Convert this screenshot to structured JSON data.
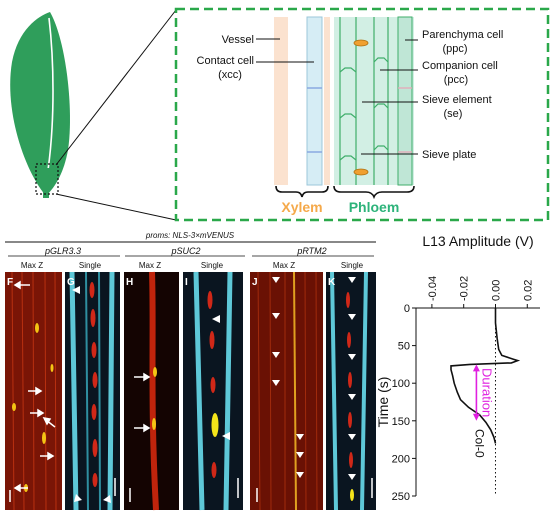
{
  "schematic": {
    "labels_left": [
      {
        "key": "vessel",
        "text": "Vessel"
      },
      {
        "key": "contact",
        "text": "Contact cell"
      },
      {
        "key": "contact_abbr",
        "text": "(xcc)"
      }
    ],
    "labels_right": [
      {
        "key": "parenchyma",
        "text": "Parenchyma cell"
      },
      {
        "key": "parenchyma_abbr",
        "text": "(ppc)"
      },
      {
        "key": "companion",
        "text": "Companion cell"
      },
      {
        "key": "companion_abbr",
        "text": "(pcc)"
      },
      {
        "key": "sieve_element",
        "text": "Sieve element"
      },
      {
        "key": "sieve_element_abbr",
        "text": "(se)"
      },
      {
        "key": "sieve_plate",
        "text": "Sieve plate"
      }
    ],
    "xylem_label": "Xylem",
    "phloem_label": "Phloem",
    "colors": {
      "xylem_text": "#f5a94a",
      "phloem_text": "#2db37a",
      "box_border": "#2aa84a",
      "leaf": "#2f9e5b",
      "vessel_fill": "#fbe2cf",
      "xcc_fill": "#d6edf5",
      "phloem_fill": "#d2efe4"
    }
  },
  "microscopy": {
    "header": "proms: NLS-3×mVENUS",
    "groups": [
      {
        "promoter": "pGLR3.3",
        "left_view": "Max Z",
        "right_view": "Single",
        "left_panel": "F",
        "right_panel": "G"
      },
      {
        "promoter": "pSUC2",
        "left_view": "Max Z",
        "right_view": "Single",
        "left_panel": "H",
        "right_panel": "I"
      },
      {
        "promoter": "pRTM2",
        "left_view": "Max Z",
        "right_view": "Single",
        "left_panel": "J",
        "right_panel": "K"
      }
    ]
  },
  "chart_data": {
    "type": "line",
    "title": "L13 Amplitude (V)",
    "ylabel": "Time (s)",
    "x_ticks": [
      "-0.04",
      "-0.02",
      "0.00",
      "0.02"
    ],
    "y_ticks": [
      "0",
      "50",
      "100",
      "150",
      "200",
      "250"
    ],
    "xlim": [
      -0.05,
      0.028
    ],
    "ylim": [
      0,
      250
    ],
    "y_inverted": true,
    "series": [
      {
        "name": "Col-0",
        "points": [
          [
            0.0,
            0
          ],
          [
            0.0,
            20
          ],
          [
            0.001,
            40
          ],
          [
            0.002,
            55
          ],
          [
            0.004,
            63
          ],
          [
            0.011,
            68
          ],
          [
            0.014,
            70
          ],
          [
            0.01,
            73
          ],
          [
            -0.016,
            75
          ],
          [
            -0.028,
            77
          ],
          [
            -0.028,
            82
          ],
          [
            -0.027,
            90
          ],
          [
            -0.026,
            100
          ],
          [
            -0.024,
            112
          ],
          [
            -0.022,
            122
          ],
          [
            -0.017,
            132
          ],
          [
            -0.01,
            142
          ],
          [
            -0.006,
            152
          ],
          [
            -0.003,
            162
          ],
          [
            -0.001,
            172
          ],
          [
            0.0,
            180
          ]
        ]
      }
    ],
    "annotations": [
      {
        "text": "Duration",
        "color": "#e020e0",
        "from_time": 75,
        "to_time": 150
      }
    ],
    "baseline_x": 0.0,
    "grid": false
  }
}
